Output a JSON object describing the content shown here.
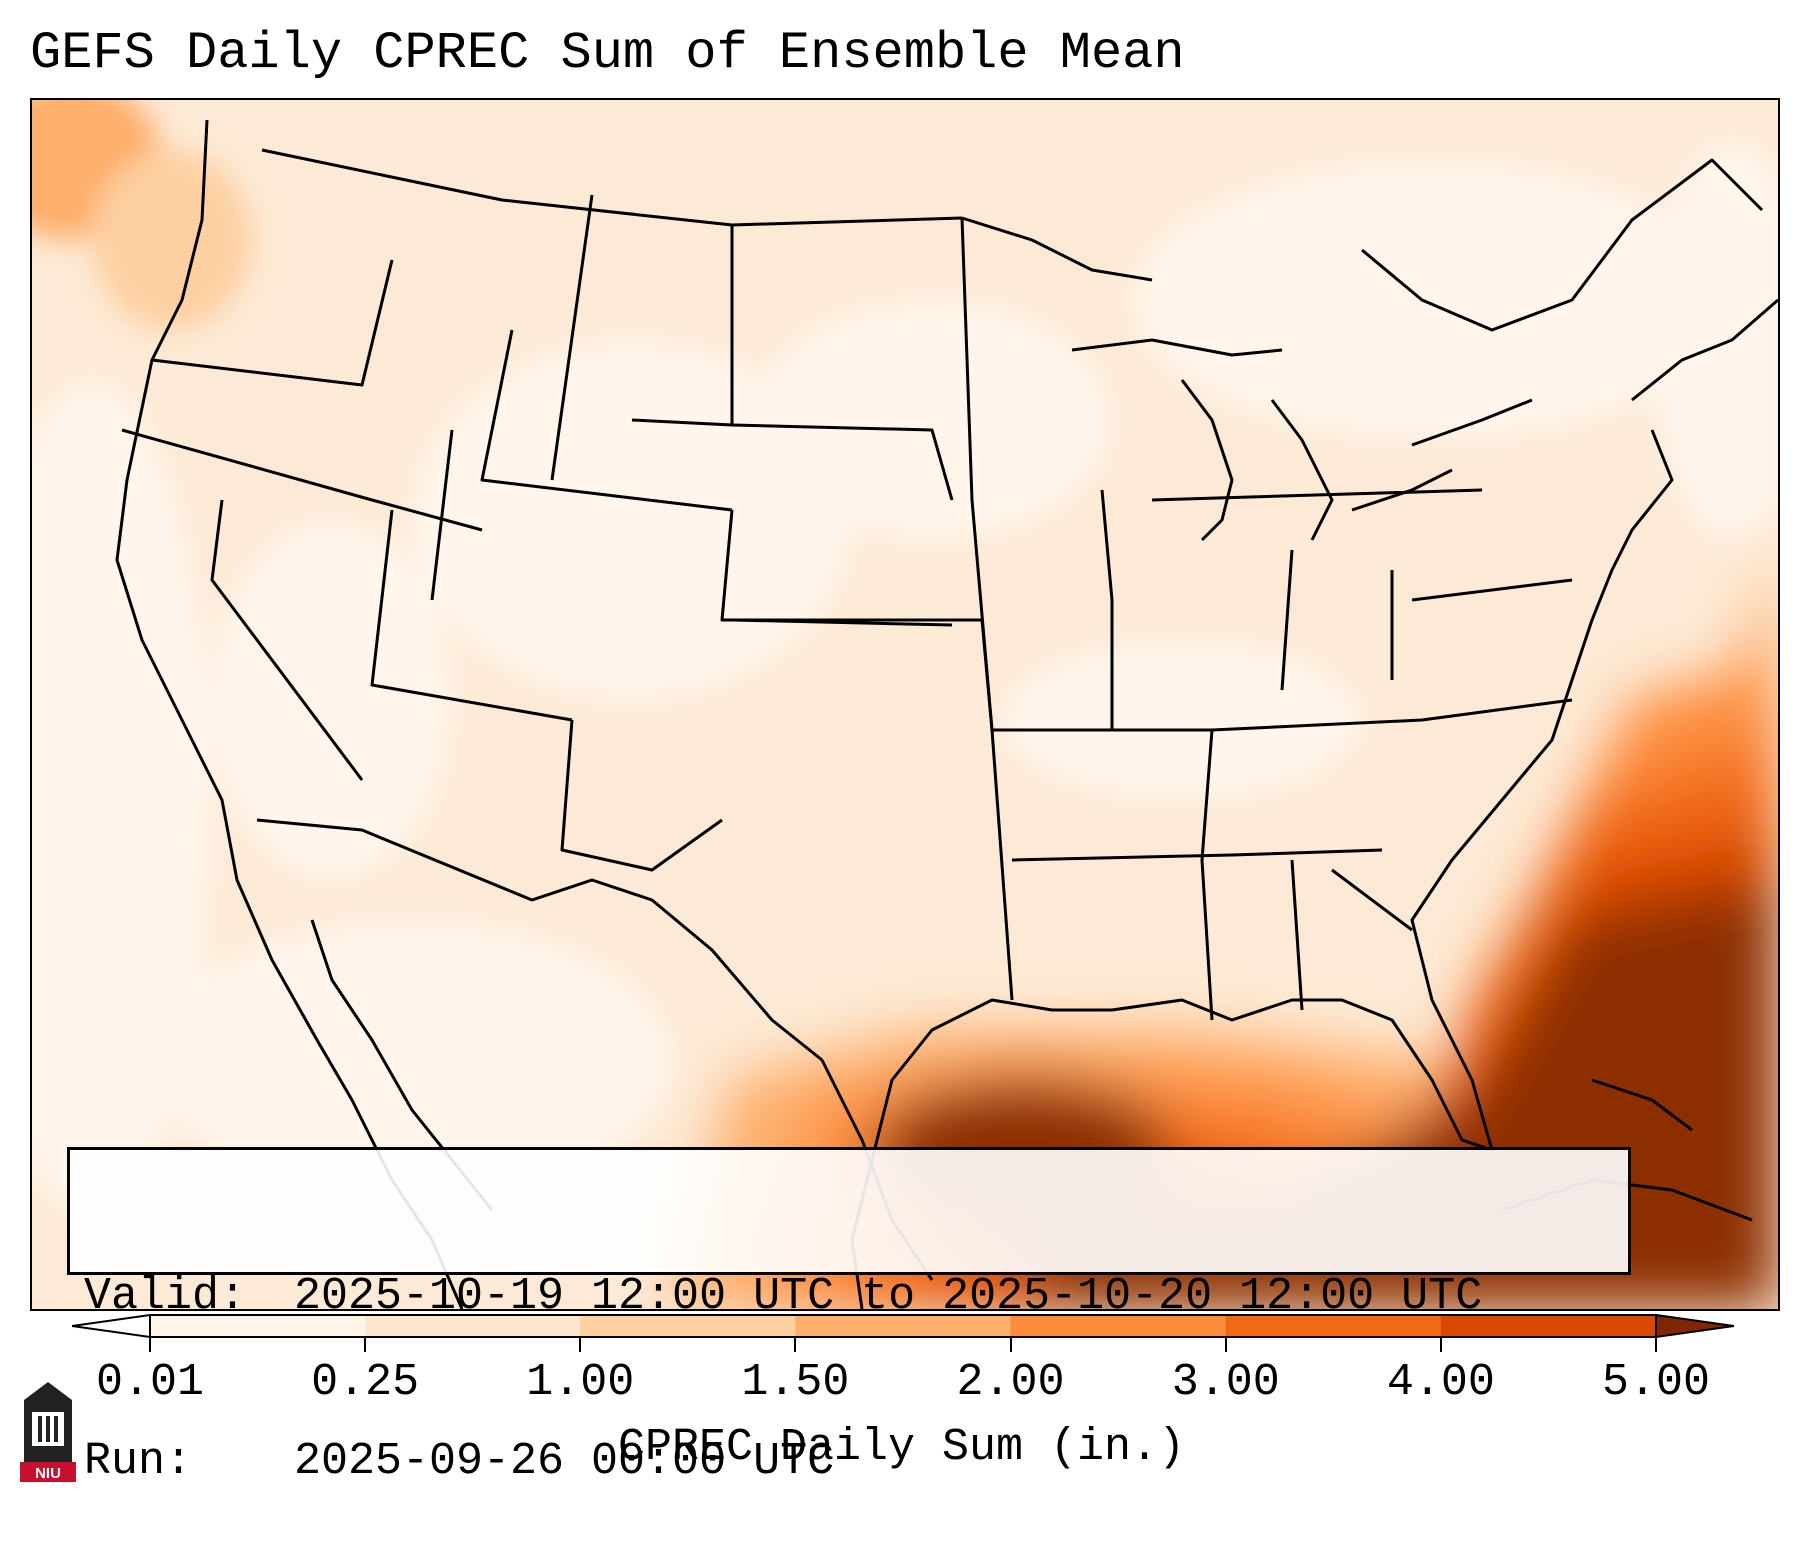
{
  "title": "GEFS Daily CPREC Sum of Ensemble Mean",
  "info": {
    "valid_label": "Valid:",
    "valid_value": "2025-10-19 12:00 UTC to 2025-10-20 12:00 UTC",
    "run_label": "Run:",
    "run_value": "2025-09-26 00:00 UTC"
  },
  "colorbar": {
    "label": "CPREC Daily Sum (in.)",
    "ticks": [
      "0.01",
      "0.25",
      "1.00",
      "1.50",
      "2.00",
      "3.00",
      "4.00",
      "5.00"
    ],
    "colors": [
      "#fff5eb",
      "#fee6ce",
      "#fdd0a2",
      "#fdae6b",
      "#fd8d3c",
      "#f16913",
      "#d94801",
      "#8c2d04"
    ],
    "under_color": "#ffffff",
    "over_color": "#7f2704"
  },
  "logo": {
    "text": "NIU",
    "icon": "niu-tower-logo"
  }
}
